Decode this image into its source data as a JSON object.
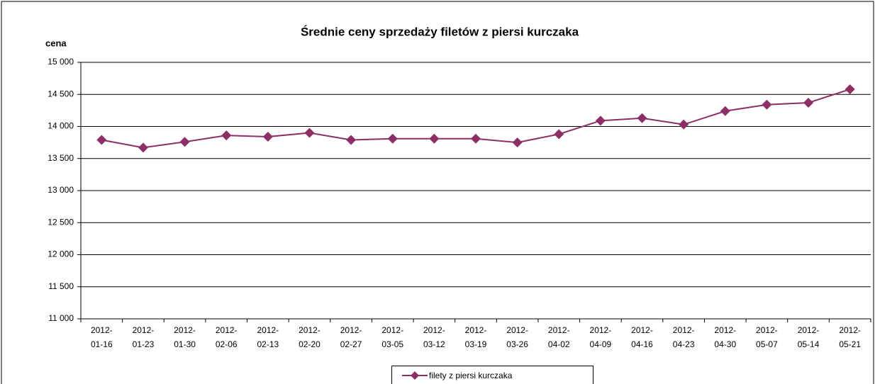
{
  "chart_data": {
    "type": "line",
    "title": "Średnie ceny sprzedaży filetów z piersi kurczaka",
    "y_label": "cena",
    "categories": [
      "2012-01-16",
      "2012-01-23",
      "2012-01-30",
      "2012-02-06",
      "2012-02-13",
      "2012-02-20",
      "2012-02-27",
      "2012-03-05",
      "2012-03-12",
      "2012-03-19",
      "2012-03-26",
      "2012-04-02",
      "2012-04-09",
      "2012-04-16",
      "2012-04-23",
      "2012-04-30",
      "2012-05-07",
      "2012-05-14",
      "2012-05-21"
    ],
    "series": [
      {
        "name": "filety z piersi kurczaka",
        "color": "#8e2e66",
        "values": [
          13790,
          13670,
          13760,
          13860,
          13840,
          13900,
          13790,
          13810,
          13810,
          13810,
          13750,
          13880,
          14090,
          14130,
          14030,
          14240,
          14340,
          14370,
          14580
        ]
      }
    ],
    "ylim": [
      11000,
      15000
    ],
    "yticks": [
      {
        "value": 11000,
        "label": "11 000"
      },
      {
        "value": 11500,
        "label": "11 500"
      },
      {
        "value": 12000,
        "label": "12 000"
      },
      {
        "value": 12500,
        "label": "12 500"
      },
      {
        "value": 13000,
        "label": "13 000"
      },
      {
        "value": 13500,
        "label": "13 500"
      },
      {
        "value": 14000,
        "label": "14 000"
      },
      {
        "value": 14500,
        "label": "14 500"
      },
      {
        "value": 15000,
        "label": "15 000"
      }
    ],
    "grid": true,
    "legend": "bottom"
  }
}
